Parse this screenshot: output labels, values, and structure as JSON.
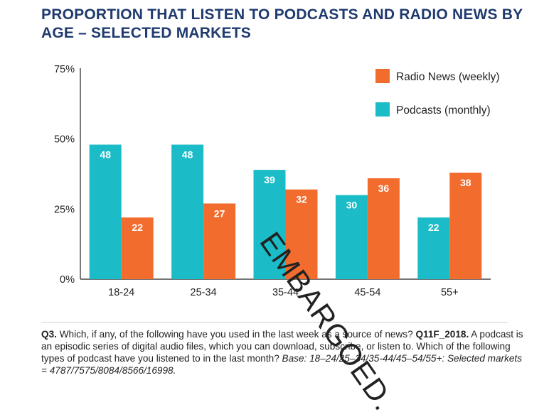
{
  "title": "PROPORTION THAT LISTEN TO PODCASTS AND RADIO NEWS BY AGE – SELECTED MARKETS",
  "colors": {
    "podcasts": "#1bbcc7",
    "radio": "#f26c2d",
    "axis": "#222222",
    "title": "#1f3a6e"
  },
  "chart_data": {
    "type": "bar",
    "title": "PROPORTION THAT LISTEN TO PODCASTS AND RADIO NEWS BY AGE – SELECTED MARKETS",
    "categories": [
      "18-24",
      "25-34",
      "35-44",
      "45-54",
      "55+"
    ],
    "series": [
      {
        "name": "Podcasts (monthly)",
        "values": [
          48,
          48,
          39,
          30,
          22
        ]
      },
      {
        "name": "Radio News (weekly)",
        "values": [
          22,
          27,
          32,
          36,
          38
        ]
      }
    ],
    "ylim": [
      0,
      75
    ],
    "yticks": [
      "0%",
      "25%",
      "50%",
      "75%"
    ],
    "legend": [
      {
        "label": "Radio News (weekly)",
        "series": "Radio News (weekly)"
      },
      {
        "label": "Podcasts (monthly)",
        "series": "Podcasts (monthly)"
      }
    ],
    "legend_position": "top-right",
    "grid": false
  },
  "footer": {
    "q_label": "Q3.",
    "q_text": " Which, if any, of the following have you used in the last week as a source of news? ",
    "q_code": "Q11F_2018.",
    "body": " A podcast is an episodic series of digital audio files, which you can download, subscribe, or listen to. Which of the following types of podcast have you listened to in the last month? ",
    "base": "Base: 18–24/25–34/35-44/45–54/55+: Selected markets = 4787/7575/8084/8566/16998."
  },
  "watermark": "EMBARGOED."
}
